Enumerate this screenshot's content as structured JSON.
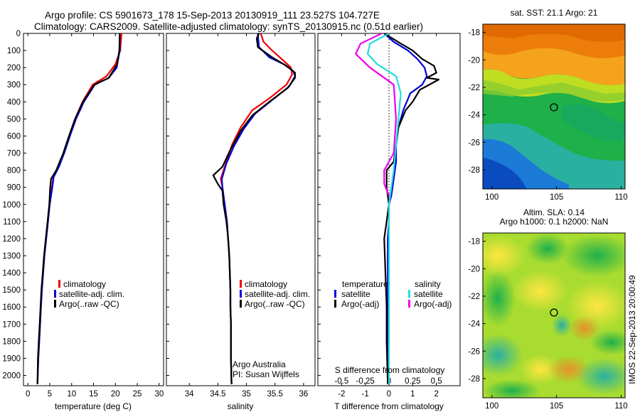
{
  "header": {
    "line1": "Argo profile: CS 5901673_178 15-Sep-2013 20130919_111 23.527S 104.727E",
    "line2": "Climatology: CARS2009. Satellite-adjusted climatology: synTS_20130915.nc (0.51d earlier)"
  },
  "colors": {
    "climatology": "#ee0000",
    "satellite": "#0000dd",
    "argo": "#000000",
    "sat_salinity": "#22dddd",
    "argo_salinity": "#ee00ee"
  },
  "depth_ticks": [
    0,
    100,
    200,
    300,
    400,
    500,
    600,
    700,
    800,
    900,
    1000,
    1100,
    1200,
    1300,
    1400,
    1500,
    1600,
    1700,
    1800,
    1900,
    2000
  ],
  "chart_data": [
    {
      "type": "line",
      "xlabel": "temperature (deg C)",
      "xlim": [
        -1,
        31
      ],
      "ylim": [
        2060,
        0
      ],
      "xticks": [
        0,
        5,
        10,
        15,
        20,
        25,
        30
      ],
      "legend": [
        "climatology",
        "satellite-adj. clim.",
        "Argo(..raw -QC)"
      ],
      "series": [
        {
          "name": "climatology",
          "color": "#ee0000",
          "points": [
            [
              21.4,
              0
            ],
            [
              21.1,
              100
            ],
            [
              20.0,
              180
            ],
            [
              18.0,
              250
            ],
            [
              14.8,
              300
            ],
            [
              12.5,
              400
            ],
            [
              10.8,
              500
            ],
            [
              9.5,
              600
            ],
            [
              8.2,
              700
            ],
            [
              7.0,
              780
            ],
            [
              5.8,
              840
            ],
            [
              5.5,
              900
            ],
            [
              5.0,
              1000
            ],
            [
              4.6,
              1100
            ],
            [
              4.2,
              1200
            ],
            [
              3.8,
              1300
            ],
            [
              3.5,
              1400
            ],
            [
              3.2,
              1500
            ],
            [
              3.0,
              1600
            ],
            [
              2.8,
              1700
            ],
            [
              2.6,
              1800
            ],
            [
              2.4,
              1900
            ],
            [
              2.2,
              2050
            ]
          ]
        },
        {
          "name": "satellite-adj. clim.",
          "color": "#0000dd",
          "points": [
            [
              21.0,
              0
            ],
            [
              21.0,
              100
            ],
            [
              20.3,
              200
            ],
            [
              18.5,
              260
            ],
            [
              15.3,
              300
            ],
            [
              12.8,
              400
            ],
            [
              11.0,
              500
            ],
            [
              9.6,
              600
            ],
            [
              8.3,
              700
            ],
            [
              7.1,
              780
            ],
            [
              5.9,
              840
            ],
            [
              5.6,
              900
            ],
            [
              5.0,
              1000
            ],
            [
              4.6,
              1100
            ],
            [
              4.2,
              1200
            ],
            [
              3.8,
              1300
            ],
            [
              3.5,
              1400
            ],
            [
              3.2,
              1500
            ],
            [
              3.0,
              1600
            ],
            [
              2.8,
              1700
            ],
            [
              2.6,
              1800
            ],
            [
              2.4,
              1900
            ],
            [
              2.2,
              2050
            ]
          ]
        },
        {
          "name": "Argo(..raw -QC)",
          "color": "#000000",
          "points": [
            [
              21.0,
              0
            ],
            [
              20.9,
              100
            ],
            [
              20.4,
              180
            ],
            [
              18.5,
              260
            ],
            [
              15.2,
              300
            ],
            [
              12.6,
              400
            ],
            [
              10.8,
              500
            ],
            [
              9.4,
              600
            ],
            [
              8.1,
              700
            ],
            [
              6.5,
              800
            ],
            [
              5.3,
              850
            ],
            [
              5.1,
              900
            ],
            [
              4.9,
              1000
            ],
            [
              4.5,
              1100
            ],
            [
              4.1,
              1200
            ],
            [
              3.7,
              1300
            ],
            [
              3.4,
              1400
            ],
            [
              3.1,
              1500
            ],
            [
              2.9,
              1600
            ],
            [
              2.7,
              1700
            ],
            [
              2.5,
              1800
            ],
            [
              2.3,
              1900
            ],
            [
              2.2,
              2050
            ]
          ]
        }
      ]
    },
    {
      "type": "line",
      "xlabel": "salinity",
      "xlim": [
        33.6,
        36.2
      ],
      "ylim": [
        2060,
        0
      ],
      "xticks": [
        34,
        34.5,
        35,
        35.5,
        36
      ],
      "legend": [
        "climatology",
        "satellite-adj. clim.",
        "Argo(..raw -QC)"
      ],
      "annotation": [
        "Argo Australia",
        "PI: Susan Wijffels"
      ],
      "series": [
        {
          "name": "climatology",
          "color": "#ee0000",
          "points": [
            [
              35.25,
              0
            ],
            [
              35.3,
              50
            ],
            [
              35.45,
              100
            ],
            [
              35.65,
              160
            ],
            [
              35.78,
              200
            ],
            [
              35.8,
              240
            ],
            [
              35.7,
              300
            ],
            [
              35.4,
              380
            ],
            [
              35.1,
              450
            ],
            [
              34.9,
              550
            ],
            [
              34.75,
              650
            ],
            [
              34.65,
              750
            ],
            [
              34.55,
              850
            ],
            [
              34.58,
              900
            ],
            [
              34.62,
              1000
            ],
            [
              34.66,
              1100
            ],
            [
              34.68,
              1200
            ],
            [
              34.7,
              1300
            ],
            [
              34.71,
              1400
            ],
            [
              34.72,
              1500
            ],
            [
              34.72,
              1600
            ],
            [
              34.73,
              1700
            ],
            [
              34.73,
              1800
            ],
            [
              34.73,
              1900
            ],
            [
              34.74,
              2050
            ]
          ]
        },
        {
          "name": "satellite-adj. clim.",
          "color": "#0000dd",
          "points": [
            [
              35.2,
              0
            ],
            [
              35.22,
              80
            ],
            [
              35.4,
              140
            ],
            [
              35.65,
              180
            ],
            [
              35.82,
              220
            ],
            [
              35.85,
              250
            ],
            [
              35.75,
              310
            ],
            [
              35.45,
              390
            ],
            [
              35.15,
              470
            ],
            [
              34.95,
              560
            ],
            [
              34.78,
              660
            ],
            [
              34.65,
              760
            ],
            [
              34.57,
              850
            ],
            [
              34.58,
              900
            ],
            [
              34.62,
              1000
            ],
            [
              34.66,
              1100
            ],
            [
              34.68,
              1200
            ],
            [
              34.7,
              1300
            ],
            [
              34.71,
              1400
            ],
            [
              34.72,
              1500
            ],
            [
              34.72,
              1600
            ],
            [
              34.73,
              1700
            ],
            [
              34.73,
              1800
            ],
            [
              34.73,
              1900
            ],
            [
              34.74,
              2050
            ]
          ]
        },
        {
          "name": "Argo(..raw -QC)",
          "color": "#000000",
          "points": [
            [
              35.22,
              0
            ],
            [
              35.18,
              30
            ],
            [
              35.2,
              80
            ],
            [
              35.45,
              140
            ],
            [
              35.7,
              190
            ],
            [
              35.85,
              230
            ],
            [
              35.85,
              260
            ],
            [
              35.72,
              320
            ],
            [
              35.4,
              400
            ],
            [
              35.1,
              480
            ],
            [
              34.9,
              570
            ],
            [
              34.72,
              680
            ],
            [
              34.58,
              780
            ],
            [
              34.42,
              830
            ],
            [
              34.5,
              880
            ],
            [
              34.58,
              920
            ],
            [
              34.6,
              1000
            ],
            [
              34.65,
              1100
            ],
            [
              34.68,
              1200
            ],
            [
              34.7,
              1300
            ],
            [
              34.71,
              1400
            ],
            [
              34.72,
              1500
            ],
            [
              34.72,
              1600
            ],
            [
              34.73,
              1700
            ],
            [
              34.73,
              1800
            ],
            [
              34.73,
              1900
            ],
            [
              34.74,
              2050
            ]
          ]
        }
      ]
    },
    {
      "type": "line",
      "xlabel": "T difference from climatology",
      "xlabel_top": "S difference from climatology",
      "xlim": [
        -3,
        3
      ],
      "ylim": [
        2060,
        0
      ],
      "xticks": [
        -2,
        -1,
        0,
        1,
        2
      ],
      "xticks_secondary": [
        "-0.5",
        "-0.25",
        "0",
        "0.25",
        "0.5"
      ],
      "legend_left_title": "temperature",
      "legend_right_title": "salinity",
      "legend": [
        "satellite",
        "Argo(-adj)",
        "satellite",
        "Argo(-adj)"
      ],
      "series": [
        {
          "name": "temperature satellite",
          "color": "#0000dd",
          "points": [
            [
              -0.2,
              0
            ],
            [
              0.2,
              50
            ],
            [
              0.8,
              100
            ],
            [
              1.2,
              150
            ],
            [
              1.5,
              200
            ],
            [
              1.6,
              250
            ],
            [
              1.4,
              300
            ],
            [
              0.9,
              350
            ],
            [
              0.6,
              450
            ],
            [
              0.4,
              550
            ],
            [
              0.3,
              650
            ],
            [
              0.3,
              750
            ],
            [
              0.2,
              850
            ],
            [
              0.1,
              950
            ],
            [
              0.0,
              1000
            ],
            [
              0.0,
              1100
            ],
            [
              -0.05,
              1200
            ],
            [
              -0.05,
              1400
            ],
            [
              -0.05,
              1600
            ],
            [
              -0.05,
              1800
            ],
            [
              -0.05,
              2050
            ]
          ]
        },
        {
          "name": "temperature Argo(-adj)",
          "color": "#000000",
          "points": [
            [
              -0.2,
              0
            ],
            [
              0.5,
              60
            ],
            [
              1.0,
              100
            ],
            [
              1.4,
              150
            ],
            [
              1.9,
              190
            ],
            [
              2.0,
              230
            ],
            [
              1.6,
              260
            ],
            [
              2.1,
              270
            ],
            [
              1.3,
              330
            ],
            [
              1.0,
              400
            ],
            [
              0.7,
              450
            ],
            [
              0.4,
              550
            ],
            [
              0.3,
              650
            ],
            [
              0.2,
              750
            ],
            [
              -0.1,
              800
            ],
            [
              -0.1,
              900
            ],
            [
              0.0,
              1000
            ],
            [
              -0.1,
              1100
            ],
            [
              -0.2,
              1200
            ],
            [
              -0.15,
              1400
            ],
            [
              -0.1,
              1600
            ],
            [
              -0.1,
              1800
            ],
            [
              -0.05,
              2050
            ]
          ]
        },
        {
          "name": "salinity satellite",
          "color": "#22dddd",
          "points": [
            [
              0.0,
              0
            ],
            [
              -0.8,
              60
            ],
            [
              -0.9,
              120
            ],
            [
              -0.5,
              180
            ],
            [
              0.3,
              250
            ],
            [
              0.5,
              350
            ],
            [
              0.4,
              500
            ],
            [
              0.3,
              650
            ],
            [
              0.2,
              800
            ],
            [
              0.1,
              900
            ],
            [
              0.0,
              1000
            ],
            [
              0.0,
              1200
            ],
            [
              0.0,
              1400
            ],
            [
              0.0,
              1600
            ],
            [
              0.0,
              1800
            ],
            [
              0.0,
              2050
            ]
          ]
        },
        {
          "name": "salinity Argo(-adj)",
          "color": "#ee00ee",
          "points": [
            [
              -0.3,
              0
            ],
            [
              -1.2,
              60
            ],
            [
              -1.4,
              120
            ],
            [
              -0.8,
              200
            ],
            [
              0.2,
              300
            ],
            [
              0.3,
              500
            ],
            [
              0.2,
              700
            ],
            [
              -0.2,
              800
            ],
            [
              -0.2,
              880
            ],
            [
              0.0,
              950
            ]
          ]
        }
      ]
    },
    {
      "type": "heatmap",
      "title": "sat. SST: 21.1  Argo: 21",
      "xlim": [
        99.3,
        110.3
      ],
      "ylim": [
        -29.4,
        -17.4
      ],
      "xticks": [
        100,
        105,
        110
      ],
      "yticks": [
        -18,
        -20,
        -22,
        -24,
        -26,
        -28
      ],
      "marker": [
        104.727,
        -23.527
      ]
    },
    {
      "type": "heatmap",
      "title": "Altim. SLA: 0.14",
      "subtitle": "Argo h1000: 0.1  h2000: NaN",
      "xlim": [
        99.3,
        110.3
      ],
      "ylim": [
        -29.4,
        -17.4
      ],
      "xticks": [
        100,
        105,
        110
      ],
      "yticks": [
        -18,
        -20,
        -22,
        -24,
        -26,
        -28
      ],
      "marker": [
        104.727,
        -23.527
      ]
    }
  ],
  "side_label": "IMOS 22-Sep-2013 20:00:49"
}
